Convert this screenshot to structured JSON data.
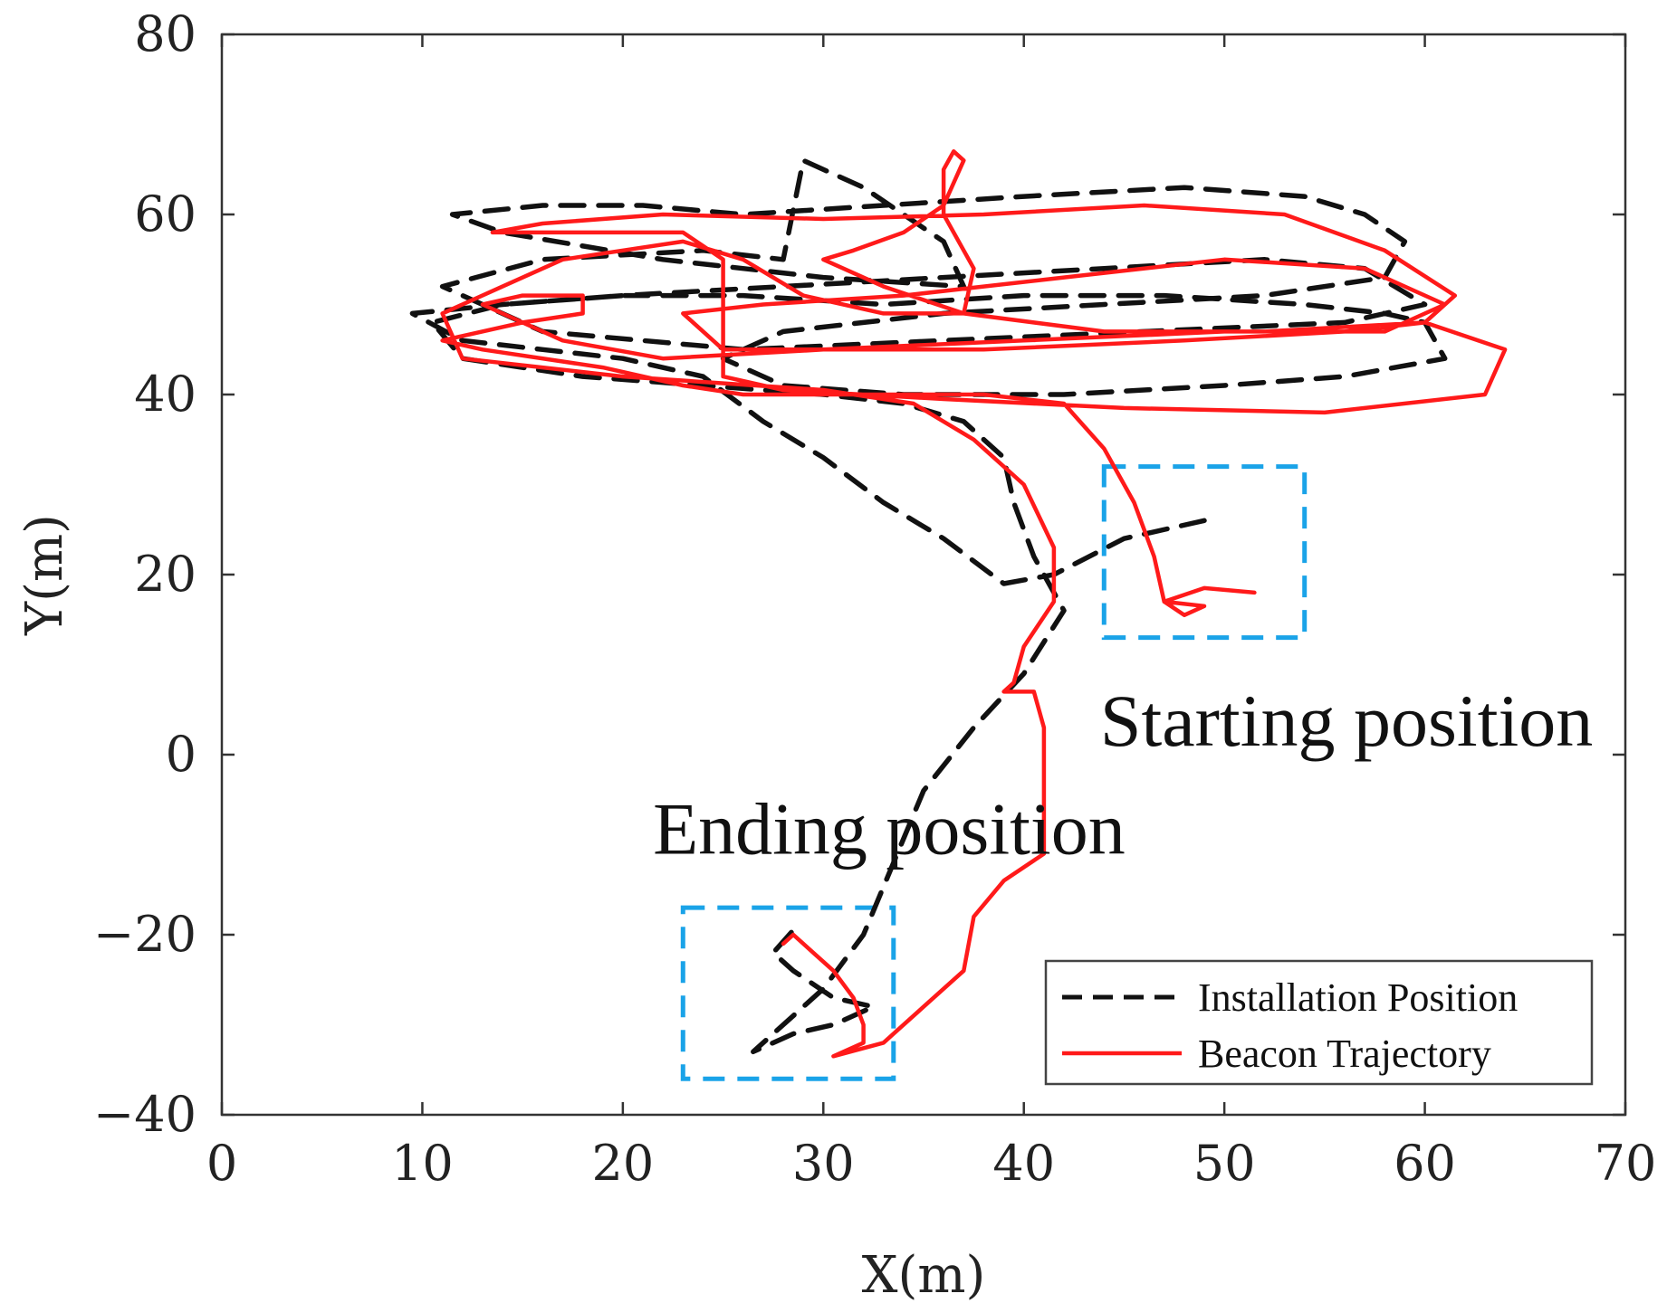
{
  "chart_data": {
    "type": "line",
    "title": "",
    "xlabel": "X(m)",
    "ylabel": "Y(m)",
    "xlim": [
      0,
      70
    ],
    "ylim": [
      -40,
      80
    ],
    "xticks": [
      0,
      10,
      20,
      30,
      40,
      50,
      60,
      70
    ],
    "xtick_labels": [
      "0",
      "10",
      "20",
      "30",
      "40",
      "50",
      "60",
      "70"
    ],
    "yticks": [
      -40,
      -20,
      0,
      20,
      40,
      60,
      80
    ],
    "ytick_labels": [
      "−40",
      "−20",
      "0",
      "20",
      "40",
      "60",
      "80"
    ],
    "grid": false,
    "legend_position": "bottom-right",
    "series": [
      {
        "name": "Installation Position",
        "color": "#111111",
        "style": "dashed",
        "points": [
          [
            49,
            26
          ],
          [
            45,
            24
          ],
          [
            41.5,
            20
          ],
          [
            39,
            19
          ],
          [
            36,
            24
          ],
          [
            33,
            28
          ],
          [
            30,
            33
          ],
          [
            27,
            37
          ],
          [
            24,
            42
          ],
          [
            20,
            44
          ],
          [
            16,
            45
          ],
          [
            12,
            46
          ],
          [
            9.5,
            49
          ],
          [
            14,
            50
          ],
          [
            20,
            51
          ],
          [
            28,
            52
          ],
          [
            36,
            53
          ],
          [
            44,
            54
          ],
          [
            52,
            55
          ],
          [
            57,
            54
          ],
          [
            60,
            50
          ],
          [
            56,
            48
          ],
          [
            46,
            47
          ],
          [
            36,
            46
          ],
          [
            26,
            45
          ],
          [
            16,
            47
          ],
          [
            11,
            52
          ],
          [
            16,
            55
          ],
          [
            24,
            56
          ],
          [
            28,
            55
          ],
          [
            29,
            66
          ],
          [
            32,
            63
          ],
          [
            36,
            57
          ],
          [
            37,
            52
          ],
          [
            30,
            53
          ],
          [
            22,
            55
          ],
          [
            14,
            58
          ],
          [
            11.5,
            60
          ],
          [
            16,
            61
          ],
          [
            21,
            61
          ],
          [
            26,
            60
          ],
          [
            33,
            61
          ],
          [
            40,
            62
          ],
          [
            48,
            63
          ],
          [
            54,
            62
          ],
          [
            57,
            60
          ],
          [
            59,
            57
          ],
          [
            58,
            53
          ],
          [
            52,
            51
          ],
          [
            44,
            50
          ],
          [
            36,
            49
          ],
          [
            28,
            47
          ],
          [
            25,
            44
          ],
          [
            28,
            41
          ],
          [
            34,
            40
          ],
          [
            42,
            40
          ],
          [
            50,
            41
          ],
          [
            56,
            42
          ],
          [
            61,
            44
          ],
          [
            60,
            48
          ],
          [
            58,
            49
          ],
          [
            54,
            50
          ],
          [
            47,
            51
          ],
          [
            40,
            51
          ],
          [
            33,
            50
          ],
          [
            26,
            51
          ],
          [
            20,
            51
          ],
          [
            14,
            50
          ],
          [
            10.5,
            48
          ],
          [
            12,
            44
          ],
          [
            18,
            42
          ],
          [
            24,
            41
          ],
          [
            30,
            40
          ],
          [
            34,
            39
          ],
          [
            37,
            37
          ],
          [
            39,
            33
          ],
          [
            39.5,
            28
          ],
          [
            40.5,
            22
          ],
          [
            42,
            16
          ],
          [
            40,
            9
          ],
          [
            37.5,
            3
          ],
          [
            35,
            -4
          ],
          [
            33.5,
            -12
          ],
          [
            32,
            -20
          ],
          [
            30,
            -26
          ],
          [
            26.5,
            -33
          ],
          [
            28.5,
            -31
          ],
          [
            30.5,
            -30
          ],
          [
            32.5,
            -28
          ],
          [
            30.5,
            -27
          ],
          [
            28.5,
            -24
          ],
          [
            27.5,
            -22
          ],
          [
            28.5,
            -19.5
          ]
        ]
      },
      {
        "name": "Beacon Trajectory",
        "color": "#ff1a1a",
        "style": "solid",
        "points": [
          [
            51.5,
            18
          ],
          [
            49,
            18.5
          ],
          [
            47,
            17
          ],
          [
            48,
            15.5
          ],
          [
            49,
            16.5
          ],
          [
            47,
            17
          ],
          [
            46.5,
            22
          ],
          [
            45.5,
            28
          ],
          [
            44,
            34
          ],
          [
            42,
            39
          ],
          [
            38,
            40
          ],
          [
            32,
            40
          ],
          [
            26,
            40
          ],
          [
            23,
            41
          ],
          [
            19,
            43
          ],
          [
            13,
            45
          ],
          [
            11,
            46
          ],
          [
            15,
            48
          ],
          [
            18,
            49
          ],
          [
            18,
            51
          ],
          [
            15,
            51
          ],
          [
            13,
            50
          ],
          [
            17,
            46
          ],
          [
            22,
            44
          ],
          [
            30,
            45
          ],
          [
            40,
            46
          ],
          [
            50,
            47
          ],
          [
            58,
            47
          ],
          [
            61,
            50
          ],
          [
            57,
            54
          ],
          [
            50,
            55
          ],
          [
            42,
            53
          ],
          [
            34,
            51
          ],
          [
            27,
            50
          ],
          [
            23,
            49
          ],
          [
            25,
            45
          ],
          [
            30,
            45
          ],
          [
            38,
            45
          ],
          [
            48,
            46
          ],
          [
            56,
            47
          ],
          [
            60,
            48
          ],
          [
            64,
            45
          ],
          [
            63,
            40
          ],
          [
            55,
            38
          ],
          [
            45,
            38.5
          ],
          [
            36,
            39.5
          ],
          [
            28,
            40.5
          ],
          [
            25,
            42
          ],
          [
            25,
            48
          ],
          [
            25,
            55
          ],
          [
            23,
            58
          ],
          [
            18,
            58
          ],
          [
            13.5,
            58
          ],
          [
            16,
            59
          ],
          [
            22,
            60
          ],
          [
            30,
            59.5
          ],
          [
            38,
            60
          ],
          [
            46,
            61
          ],
          [
            53,
            60
          ],
          [
            58,
            56
          ],
          [
            61.5,
            51
          ],
          [
            60,
            48
          ],
          [
            52,
            47
          ],
          [
            44,
            47
          ],
          [
            37,
            49
          ],
          [
            33,
            52
          ],
          [
            30,
            55
          ],
          [
            31.5,
            56
          ],
          [
            34,
            58
          ],
          [
            36,
            61
          ],
          [
            37,
            66
          ],
          [
            36.5,
            67
          ],
          [
            36,
            65
          ],
          [
            36,
            60
          ],
          [
            37.5,
            54
          ],
          [
            37,
            49
          ],
          [
            33,
            49
          ],
          [
            29,
            51
          ],
          [
            26,
            55
          ],
          [
            23,
            57
          ],
          [
            20,
            56
          ],
          [
            17,
            55
          ],
          [
            14,
            52
          ],
          [
            11,
            49
          ],
          [
            12,
            44
          ],
          [
            20,
            42
          ],
          [
            30,
            40.5
          ],
          [
            34.5,
            39
          ],
          [
            37.5,
            35
          ],
          [
            40,
            30
          ],
          [
            41.5,
            23
          ],
          [
            41.5,
            17
          ],
          [
            40,
            12
          ],
          [
            39.5,
            8
          ],
          [
            39,
            7
          ],
          [
            40.5,
            7
          ],
          [
            41,
            3
          ],
          [
            41,
            -5
          ],
          [
            41,
            -11
          ],
          [
            39,
            -14
          ],
          [
            37.5,
            -18
          ],
          [
            37,
            -24
          ],
          [
            35,
            -28
          ],
          [
            33,
            -32
          ],
          [
            30.5,
            -33.5
          ],
          [
            32,
            -32
          ],
          [
            32,
            -30
          ],
          [
            31.5,
            -27
          ],
          [
            30.5,
            -24
          ],
          [
            29.5,
            -22
          ],
          [
            28.5,
            -20
          ],
          [
            28,
            -21
          ]
        ]
      }
    ],
    "annotations": [
      {
        "text": "Starting position",
        "at": [
          43.8,
          1
        ]
      },
      {
        "text": "Ending position",
        "at": [
          21.5,
          -11
        ]
      }
    ],
    "highlight_boxes": [
      {
        "name": "start-box",
        "xrange": [
          44,
          54
        ],
        "yrange": [
          13,
          32
        ],
        "color": "#1aa3e8"
      },
      {
        "name": "end-box",
        "xrange": [
          23,
          33.5
        ],
        "yrange": [
          -36,
          -17
        ],
        "color": "#1aa3e8"
      }
    ]
  }
}
